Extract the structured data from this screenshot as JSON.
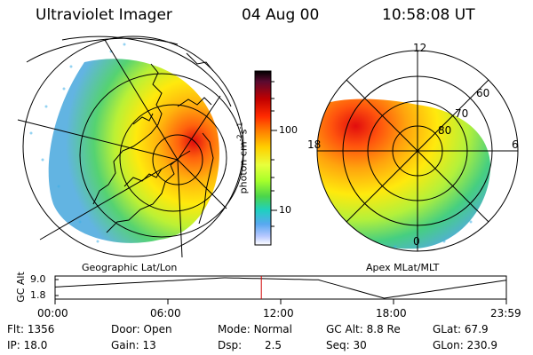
{
  "header": {
    "title": "Ultraviolet Imager",
    "date": "04 Aug 00",
    "time": "10:58:08 UT"
  },
  "left_panel": {
    "caption": "Geographic Lat/Lon"
  },
  "right_panel": {
    "caption": "Apex MLat/MLT",
    "mlt_labels": [
      "12",
      "18",
      "6",
      "0"
    ],
    "mlat_labels": [
      "60",
      "70",
      "80"
    ]
  },
  "colorbar": {
    "unit_label": "photon cm",
    "unit_exp1": "-2",
    "unit_mid": "s",
    "unit_exp2": "-1",
    "tick_labels": [
      "100",
      "10"
    ],
    "colors": [
      "#000000",
      "#5a0a30",
      "#c00000",
      "#ff2a00",
      "#ff7a00",
      "#ffd000",
      "#e8ff3c",
      "#a8ff2a",
      "#4cd54a",
      "#1fd0c0",
      "#58a8f0",
      "#b8c8ff",
      "#ffffff"
    ]
  },
  "altitude_strip": {
    "axis_title": "GC Alt",
    "y_ticks": [
      "9.0",
      "1.8"
    ],
    "x_ticks": [
      "00:00",
      "06:00",
      "12:00",
      "18:00",
      "23:59"
    ],
    "current_time_hours": 10.97,
    "marker_color": "#d00000"
  },
  "info": {
    "flt_label": "Flt:",
    "flt": "1356",
    "door_label": "Door:",
    "door": "Open",
    "mode_label": "Mode:",
    "mode": "Normal",
    "gcalt_label": "GC Alt:",
    "gcalt": "8.8 Re",
    "glat_label": "GLat:",
    "glat": "67.9",
    "ip_label": "IP:",
    "ip": "18.0",
    "gain_label": "Gain:",
    "gain": "13",
    "dsp_label": "Dsp:",
    "dsp": "2.5",
    "seq_label": "Seq:",
    "seq": "30",
    "glon_label": "GLon:",
    "glon": "230.9"
  }
}
